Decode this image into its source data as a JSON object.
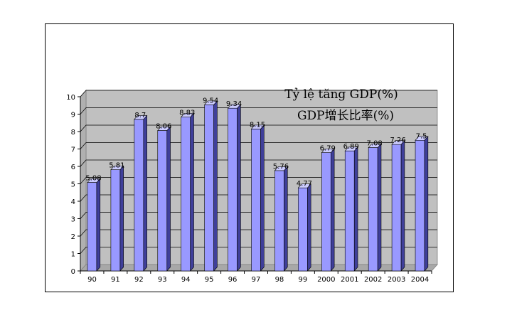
{
  "chart_data": {
    "type": "bar",
    "title_lines": [
      "Tỷ lệ tăng GDP(%)",
      "GDP增长比率(%)"
    ],
    "categories": [
      "90",
      "91",
      "92",
      "93",
      "94",
      "95",
      "96",
      "97",
      "98",
      "99",
      "2000",
      "2001",
      "2002",
      "2003",
      "2004"
    ],
    "series": [
      {
        "values": [
          5.08,
          5.81,
          8.7,
          8.06,
          8.83,
          9.54,
          9.34,
          8.15,
          5.76,
          4.77,
          6.79,
          6.89,
          7.08,
          7.26,
          7.5
        ]
      }
    ],
    "data_labels": [
      "5.08",
      "5.81",
      "8.7",
      "8.06",
      "8.83",
      "9.54",
      "9.34",
      "8.15",
      "5.76",
      "4.77",
      "6.79",
      "6.89",
      "7.08",
      "7.26",
      "7.5"
    ],
    "yticks": [
      "0",
      "1",
      "2",
      "3",
      "4",
      "5",
      "6",
      "7",
      "8",
      "9",
      "10"
    ],
    "ylim": [
      0,
      10
    ],
    "grid": true,
    "legend": "none",
    "colors": {
      "bar_front": "#9999ff",
      "bar_side": "#3f3f9a",
      "bar_top": "#ccccff",
      "wall": "#c0c0c0",
      "floor": "#a8a8a8",
      "grid": "#000000"
    }
  }
}
